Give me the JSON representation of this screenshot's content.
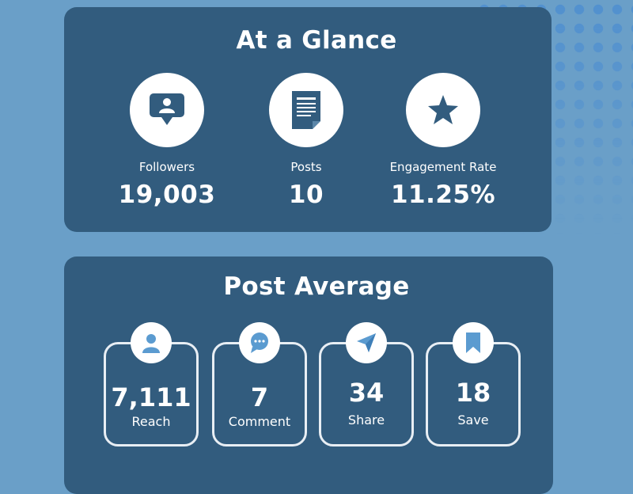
{
  "at_a_glance": {
    "title": "At a Glance",
    "stats": [
      {
        "icon": "follower-chat-icon",
        "label": "Followers",
        "value": "19,003"
      },
      {
        "icon": "document-icon",
        "label": "Posts",
        "value": "10"
      },
      {
        "icon": "star-icon",
        "label": "Engagement Rate",
        "value": "11.25%"
      }
    ]
  },
  "post_average": {
    "title": "Post Average",
    "metrics": [
      {
        "icon": "person-icon",
        "label": "Reach",
        "value": "7,111"
      },
      {
        "icon": "comment-bubble-icon",
        "label": "Comment",
        "value": "7"
      },
      {
        "icon": "send-icon",
        "label": "Share",
        "value": "34"
      },
      {
        "icon": "bookmark-icon",
        "label": "Save",
        "value": "18"
      }
    ]
  },
  "colors": {
    "background": "#6a9fc8",
    "card": "#325c7e",
    "icon": "#325c7e",
    "icon_light": "#5b9bd0",
    "text": "#ffffff"
  }
}
